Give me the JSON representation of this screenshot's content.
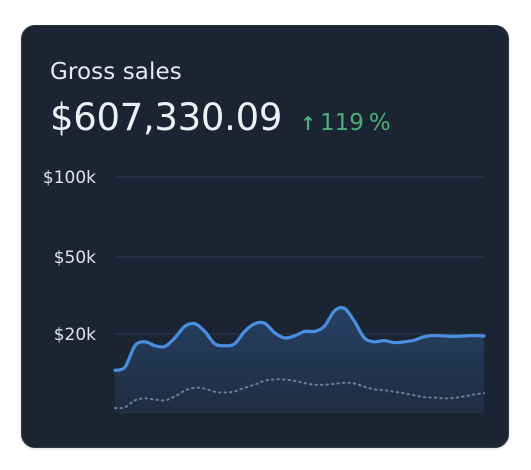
{
  "header": {
    "title": "Gross sales",
    "value": "$607,330.09",
    "change_value": "119",
    "change_unit": "%",
    "change_direction": "up",
    "change_icon": "arrow-up-icon"
  },
  "colors": {
    "background": "#1b2433",
    "line": "#4a90e2",
    "comparison_line": "#6b7f99",
    "positive": "#4caf7a",
    "grid": "#2e3a4c"
  },
  "chart_data": {
    "type": "area",
    "title": "",
    "xlabel": "",
    "ylabel": "",
    "ytick_values": [
      20000,
      50000,
      100000
    ],
    "ytick_labels": [
      "$20k",
      "$50k",
      "$100k"
    ],
    "grid": true,
    "legend": "none",
    "x": [
      0,
      1,
      2,
      3,
      4,
      5,
      6,
      7,
      8,
      9,
      10,
      11,
      12,
      13,
      14,
      15,
      16,
      17,
      18,
      19,
      20,
      21,
      22,
      23,
      24,
      25,
      26,
      27,
      28,
      29,
      30,
      31,
      32,
      33,
      34,
      35,
      36,
      37
    ],
    "series": [
      {
        "style": "solid-area",
        "values": [
          10700,
          11500,
          17000,
          18000,
          17000,
          16800,
          19000,
          23000,
          24000,
          21000,
          17500,
          17000,
          17500,
          21000,
          24000,
          24200,
          20500,
          19000,
          19500,
          21000,
          21000,
          23000,
          29000,
          30000,
          25000,
          19000,
          18000,
          18300,
          17800,
          18000,
          18400,
          19300,
          19600,
          19500,
          19400,
          19500,
          19600,
          19500
        ]
      },
      {
        "style": "dotted",
        "values": [
          1000,
          1200,
          3000,
          3500,
          3200,
          3000,
          4000,
          5500,
          6200,
          6000,
          5200,
          5000,
          5300,
          6200,
          7000,
          8000,
          8400,
          8300,
          8000,
          7400,
          7000,
          7000,
          7200,
          7500,
          7300,
          6500,
          5800,
          5600,
          5200,
          4800,
          4300,
          3800,
          3700,
          3500,
          3600,
          4000,
          4500,
          4800
        ]
      }
    ]
  }
}
